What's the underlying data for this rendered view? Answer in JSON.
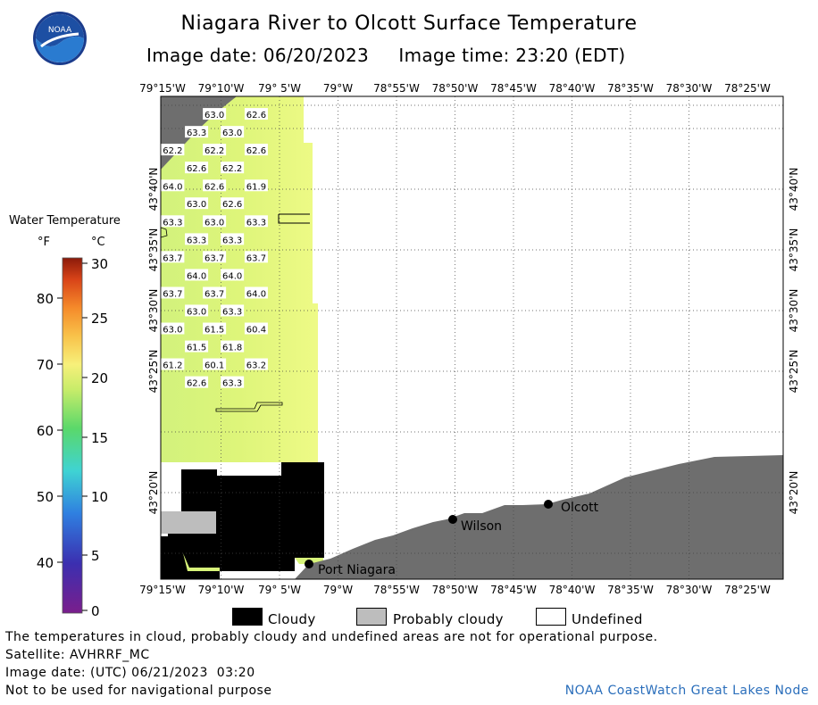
{
  "header": {
    "title": "Niagara River to Olcott Surface Temperature",
    "image_date_label": "Image date:",
    "image_date": "06/20/2023",
    "image_time_label": "Image time:",
    "image_time": "23:20 (EDT)",
    "logo_text": "NOAA"
  },
  "colorbar": {
    "title": "Water Temperature",
    "unit_f": "°F",
    "unit_c": "°C",
    "f_ticks": [
      "80",
      "70",
      "60",
      "50",
      "40"
    ],
    "c_ticks": [
      "30",
      "25",
      "20",
      "15",
      "10",
      "5",
      "0"
    ]
  },
  "legend": {
    "cloudy": "Cloudy",
    "probably_cloudy": "Probably cloudy",
    "undefined": "Undefined",
    "colors": {
      "cloudy": "#000000",
      "probably_cloudy": "#bdbdbd",
      "undefined": "#ffffff",
      "land": "#6e6e6e",
      "water": "#d8f57a"
    }
  },
  "notes": {
    "disclaimer": "The temperatures in cloud, probably cloudy and undefined areas are not for operational purpose.",
    "satellite": "Satellite: AVHRRF_MC",
    "utc_date": "Image date: (UTC) 06/21/2023  03:20",
    "navigation": "Not to be used for navigational purpose",
    "credit": "NOAA CoastWatch Great Lakes Node"
  },
  "chart_data": {
    "type": "heatmap",
    "title": "Niagara River to Olcott Surface Temperature",
    "x_tick_labels": [
      "79°15'W",
      "79°10'W",
      "79° 5'W",
      "79°W",
      "78°55'W",
      "78°50'W",
      "78°45'W",
      "78°40'W",
      "78°35'W",
      "78°30'W",
      "78°25'W"
    ],
    "y_tick_labels": [
      "43°40'N",
      "43°35'N",
      "43°30'N",
      "43°25'N",
      "43°20'N"
    ],
    "lon_range": [
      -79.2667,
      -78.3972
    ],
    "lat_range": [
      43.2667,
      43.7167
    ],
    "units": "°F",
    "places": [
      "Port Niagara",
      "Wilson",
      "Olcott"
    ],
    "temperature_labels": [
      {
        "lon": -79.1917,
        "lat": 43.7,
        "value": "63.0"
      },
      {
        "lon": -79.1333,
        "lat": 43.7,
        "value": "62.6"
      },
      {
        "lon": -79.2167,
        "lat": 43.6833,
        "value": "63.3"
      },
      {
        "lon": -79.1667,
        "lat": 43.6833,
        "value": "63.0"
      },
      {
        "lon": -79.25,
        "lat": 43.6667,
        "value": "62.2"
      },
      {
        "lon": -79.1917,
        "lat": 43.6667,
        "value": "62.2"
      },
      {
        "lon": -79.1333,
        "lat": 43.6667,
        "value": "62.6"
      },
      {
        "lon": -79.2167,
        "lat": 43.65,
        "value": "62.6"
      },
      {
        "lon": -79.1667,
        "lat": 43.65,
        "value": "62.2"
      },
      {
        "lon": -79.25,
        "lat": 43.6333,
        "value": "64.0"
      },
      {
        "lon": -79.1917,
        "lat": 43.6333,
        "value": "62.6"
      },
      {
        "lon": -79.1333,
        "lat": 43.6333,
        "value": "61.9"
      },
      {
        "lon": -79.2167,
        "lat": 43.6167,
        "value": "63.0"
      },
      {
        "lon": -79.1667,
        "lat": 43.6167,
        "value": "62.6"
      },
      {
        "lon": -79.25,
        "lat": 43.6,
        "value": "63.3"
      },
      {
        "lon": -79.1917,
        "lat": 43.6,
        "value": "63.0"
      },
      {
        "lon": -79.1333,
        "lat": 43.6,
        "value": "63.3"
      },
      {
        "lon": -79.2167,
        "lat": 43.5833,
        "value": "63.3"
      },
      {
        "lon": -79.1667,
        "lat": 43.5833,
        "value": "63.3"
      },
      {
        "lon": -79.25,
        "lat": 43.5667,
        "value": "63.7"
      },
      {
        "lon": -79.1917,
        "lat": 43.5667,
        "value": "63.7"
      },
      {
        "lon": -79.1333,
        "lat": 43.5667,
        "value": "63.7"
      },
      {
        "lon": -79.2167,
        "lat": 43.55,
        "value": "64.0"
      },
      {
        "lon": -79.1667,
        "lat": 43.55,
        "value": "64.0"
      },
      {
        "lon": -79.25,
        "lat": 43.5333,
        "value": "63.7"
      },
      {
        "lon": -79.1917,
        "lat": 43.5333,
        "value": "63.7"
      },
      {
        "lon": -79.1333,
        "lat": 43.5333,
        "value": "64.0"
      },
      {
        "lon": -79.2167,
        "lat": 43.5167,
        "value": "63.0"
      },
      {
        "lon": -79.1667,
        "lat": 43.5167,
        "value": "63.3"
      },
      {
        "lon": -79.25,
        "lat": 43.5,
        "value": "63.0"
      },
      {
        "lon": -79.1917,
        "lat": 43.5,
        "value": "61.5"
      },
      {
        "lon": -79.1333,
        "lat": 43.5,
        "value": "60.4"
      },
      {
        "lon": -79.2167,
        "lat": 43.4833,
        "value": "61.5"
      },
      {
        "lon": -79.1667,
        "lat": 43.4833,
        "value": "61.8"
      },
      {
        "lon": -79.25,
        "lat": 43.4667,
        "value": "61.2"
      },
      {
        "lon": -79.1917,
        "lat": 43.4667,
        "value": "60.1"
      },
      {
        "lon": -79.1333,
        "lat": 43.4667,
        "value": "63.2"
      },
      {
        "lon": -79.2167,
        "lat": 43.45,
        "value": "62.6"
      },
      {
        "lon": -79.1667,
        "lat": 43.45,
        "value": "63.3"
      }
    ]
  }
}
